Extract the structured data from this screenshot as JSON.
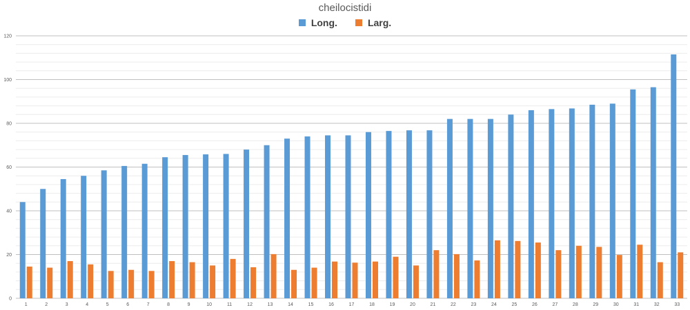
{
  "chart_data": {
    "type": "bar",
    "title": "cheilocistidi",
    "categories": [
      "1",
      "2",
      "3",
      "4",
      "5",
      "6",
      "7",
      "8",
      "9",
      "10",
      "11",
      "12",
      "13",
      "14",
      "15",
      "16",
      "17",
      "18",
      "19",
      "20",
      "21",
      "22",
      "23",
      "24",
      "25",
      "26",
      "27",
      "28",
      "29",
      "30",
      "31",
      "32",
      "33"
    ],
    "series": [
      {
        "name": "Long.",
        "color": "#5B9BD5",
        "values": [
          44,
          50,
          54.5,
          56,
          58.5,
          60.5,
          61.5,
          64.5,
          65.5,
          65.8,
          66,
          68,
          70,
          73,
          74,
          74.5,
          74.5,
          76,
          76.5,
          76.8,
          76.8,
          82,
          82,
          82,
          84,
          86,
          86.5,
          86.8,
          88.5,
          89,
          95.5,
          96.5,
          111.5
        ]
      },
      {
        "name": "Larg.",
        "color": "#ED7D31",
        "values": [
          14.5,
          14,
          17,
          15.5,
          12.5,
          13,
          12.5,
          17,
          16.5,
          15,
          18,
          14.2,
          20.2,
          13,
          14,
          16.8,
          16.3,
          16.8,
          19,
          15,
          22,
          20.2,
          17.3,
          26.5,
          26.2,
          25.5,
          22,
          24,
          23.5,
          19.8,
          24.5,
          16.5,
          21
        ]
      }
    ],
    "ylim": [
      0,
      120
    ],
    "yticks": [
      0,
      20,
      40,
      60,
      80,
      100,
      120
    ],
    "grid": true,
    "legend_position": "top"
  }
}
